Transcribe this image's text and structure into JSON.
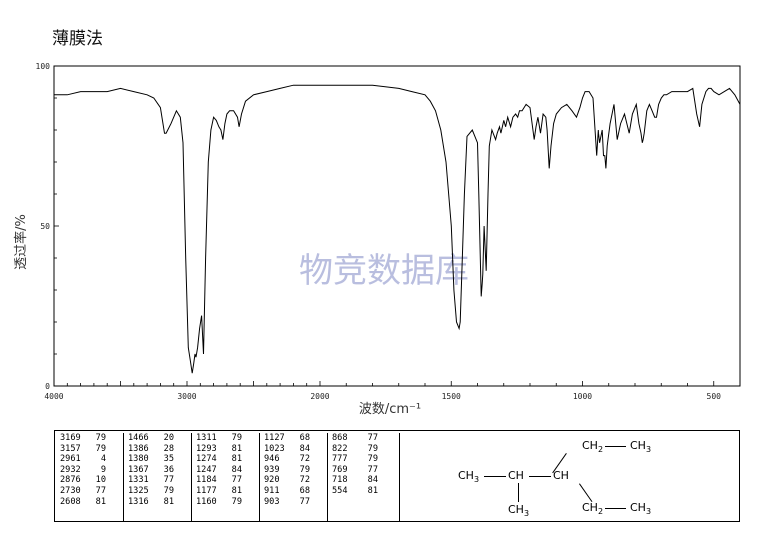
{
  "method_label": "薄膜法",
  "chart_data": {
    "type": "line",
    "title": "",
    "xlabel": "波数/cm⁻¹",
    "ylabel": "透过率/%",
    "xlim": [
      4000,
      400
    ],
    "ylim": [
      0,
      100
    ],
    "x_ticks": [
      "4000",
      "3000",
      "2000",
      "1500",
      "1000",
      "500"
    ],
    "x_tick_values": [
      4000,
      3000,
      2000,
      1500,
      1000,
      500
    ],
    "y_ticks": [
      "0",
      "50",
      "100"
    ],
    "y_tick_values": [
      0,
      50,
      100
    ],
    "grid": false,
    "watermark": "物竞数据库",
    "series": [
      {
        "color": "#000000",
        "x": [
          4000,
          3900,
          3800,
          3700,
          3600,
          3500,
          3400,
          3300,
          3250,
          3200,
          3169,
          3157,
          3120,
          3080,
          3050,
          3030,
          3010,
          2990,
          2975,
          2961,
          2950,
          2940,
          2932,
          2920,
          2905,
          2890,
          2876,
          2860,
          2840,
          2820,
          2800,
          2780,
          2760,
          2745,
          2730,
          2715,
          2700,
          2680,
          2650,
          2620,
          2608,
          2590,
          2560,
          2500,
          2400,
          2300,
          2200,
          2100,
          2000,
          1900,
          1800,
          1700,
          1650,
          1600,
          1580,
          1560,
          1540,
          1520,
          1500,
          1490,
          1480,
          1470,
          1466,
          1460,
          1450,
          1440,
          1420,
          1400,
          1395,
          1386,
          1382,
          1380,
          1375,
          1367,
          1360,
          1355,
          1345,
          1331,
          1325,
          1316,
          1311,
          1300,
          1293,
          1285,
          1274,
          1265,
          1255,
          1247,
          1240,
          1230,
          1215,
          1200,
          1184,
          1177,
          1170,
          1160,
          1150,
          1140,
          1135,
          1127,
          1120,
          1110,
          1100,
          1080,
          1060,
          1040,
          1023,
          1010,
          1000,
          990,
          975,
          960,
          946,
          940,
          939,
          935,
          925,
          920,
          915,
          911,
          906,
          903,
          895,
          880,
          868,
          855,
          840,
          822,
          810,
          795,
          785,
          777,
          772,
          769,
          765,
          755,
          745,
          735,
          725,
          718,
          710,
          700,
          690,
          680,
          660,
          640,
          620,
          600,
          580,
          565,
          554,
          545,
          530,
          520,
          510,
          500,
          480,
          460,
          440,
          420,
          400
        ],
        "y": [
          91,
          91,
          92,
          92,
          92,
          93,
          92,
          91,
          90,
          87,
          79,
          79,
          82,
          86,
          84,
          76,
          40,
          12,
          8,
          4,
          7,
          10,
          9,
          12,
          18,
          22,
          10,
          40,
          70,
          80,
          84,
          83,
          81,
          80,
          77,
          82,
          85,
          86,
          86,
          84,
          81,
          85,
          89,
          91,
          92,
          93,
          94,
          94,
          94,
          94,
          94,
          93,
          92,
          91,
          89,
          86,
          80,
          70,
          50,
          30,
          20,
          18,
          20,
          35,
          60,
          78,
          80,
          76,
          60,
          28,
          32,
          35,
          50,
          36,
          60,
          75,
          80,
          77,
          79,
          81,
          79,
          83,
          81,
          84,
          81,
          84,
          85,
          84,
          86,
          86,
          88,
          87,
          77,
          81,
          84,
          79,
          85,
          84,
          80,
          68,
          75,
          82,
          85,
          87,
          88,
          86,
          84,
          87,
          90,
          92,
          92,
          90,
          72,
          80,
          79,
          76,
          80,
          72,
          72,
          68,
          75,
          77,
          82,
          88,
          77,
          82,
          85,
          79,
          85,
          88,
          82,
          79,
          76,
          77,
          79,
          86,
          88,
          86,
          84,
          84,
          88,
          90,
          91,
          91,
          92,
          92,
          92,
          92,
          93,
          85,
          81,
          88,
          92,
          93,
          93,
          92,
          91,
          92,
          93,
          91,
          88
        ]
      }
    ]
  },
  "peak_table": {
    "columns": [
      [
        [
          "3169",
          "79"
        ],
        [
          "3157",
          "79"
        ],
        [
          "2961",
          "4"
        ],
        [
          "2932",
          "9"
        ],
        [
          "2876",
          "10"
        ],
        [
          "2730",
          "77"
        ],
        [
          "2608",
          "81"
        ]
      ],
      [
        [
          "1466",
          "20"
        ],
        [
          "1386",
          "28"
        ],
        [
          "1380",
          "35"
        ],
        [
          "1367",
          "36"
        ],
        [
          "1331",
          "77"
        ],
        [
          "1325",
          "79"
        ],
        [
          "1316",
          "81"
        ]
      ],
      [
        [
          "1311",
          "79"
        ],
        [
          "1293",
          "81"
        ],
        [
          "1274",
          "81"
        ],
        [
          "1247",
          "84"
        ],
        [
          "1184",
          "77"
        ],
        [
          "1177",
          "81"
        ],
        [
          "1160",
          "79"
        ]
      ],
      [
        [
          "1127",
          "68"
        ],
        [
          "1023",
          "84"
        ],
        [
          "946",
          "72"
        ],
        [
          "939",
          "79"
        ],
        [
          "920",
          "72"
        ],
        [
          "911",
          "68"
        ],
        [
          "903",
          "77"
        ]
      ],
      [
        [
          "868",
          "77"
        ],
        [
          "822",
          "79"
        ],
        [
          "777",
          "79"
        ],
        [
          "769",
          "77"
        ],
        [
          "718",
          "84"
        ],
        [
          "554",
          "81"
        ]
      ]
    ]
  },
  "structure": {
    "top_right": [
      "CH",
      "2",
      "—",
      "CH",
      "3"
    ],
    "main_left": "CH",
    "main_left_sub": "3",
    "main_center": "CH",
    "main_right": "CH",
    "bottom_center": "CH",
    "bottom_center_sub": "3",
    "bottom_right": [
      "CH",
      "2",
      "—",
      "CH",
      "3"
    ]
  }
}
